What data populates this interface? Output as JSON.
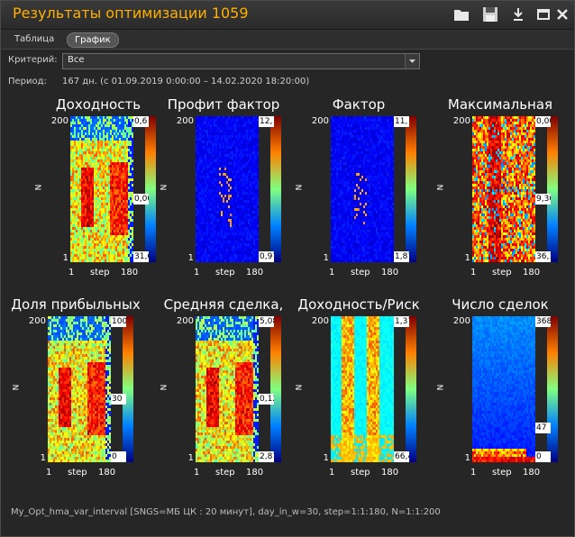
{
  "window": {
    "title": "Результаты оптимизации 1059",
    "tabs": [
      {
        "label": "Таблица",
        "active": false
      },
      {
        "label": "График",
        "active": true
      }
    ]
  },
  "criterion": {
    "label": "Критерий:",
    "value": "Все"
  },
  "period": {
    "label": "Период:",
    "value": "167 дн. (с 01.09.2019 0:00:00 – 14.02.2020 18:20:00)"
  },
  "axes": {
    "y_label": "N",
    "y_top": "200",
    "y_bottom": "1",
    "x_left": "1",
    "x_label": "step",
    "x_right": "180"
  },
  "charts": [
    {
      "title": "Доходность",
      "scheme": "jet-warm",
      "labels": [
        {
          "text": "0,6",
          "pos": "top"
        },
        {
          "text": "0,00",
          "pos": "mid"
        },
        {
          "text": "31,6",
          "pos": "bottom"
        }
      ]
    },
    {
      "title": "Профит фактор",
      "scheme": "jet-cold",
      "labels": [
        {
          "text": "12,",
          "pos": "top"
        },
        {
          "text": "0,97",
          "pos": "bottom"
        }
      ]
    },
    {
      "title": "Фактор",
      "scheme": "jet-cold",
      "labels": [
        {
          "text": "11,",
          "pos": "top"
        },
        {
          "text": "1,87",
          "pos": "bottom"
        }
      ]
    },
    {
      "title": "Максимальная",
      "scheme": "jet-hot",
      "labels": [
        {
          "text": "0,00",
          "pos": "top"
        },
        {
          "text": "9,36",
          "pos": "mid"
        },
        {
          "text": "36,1",
          "pos": "bottom"
        }
      ]
    },
    {
      "title": "Доля прибыльных",
      "scheme": "jet-warm",
      "labels": [
        {
          "text": "100",
          "pos": "top"
        },
        {
          "text": "30",
          "pos": "mid"
        },
        {
          "text": "0",
          "pos": "bottom"
        }
      ]
    },
    {
      "title": "Средняя сделка,",
      "scheme": "jet-warm",
      "labels": [
        {
          "text": "5,08",
          "pos": "top"
        },
        {
          "text": "0,12",
          "pos": "mid"
        },
        {
          "text": "2,87",
          "pos": "bottom"
        }
      ]
    },
    {
      "title": "Доходность/Риск",
      "scheme": "jet-mid",
      "labels": [
        {
          "text": "1,37",
          "pos": "top"
        },
        {
          "text": "66,4",
          "pos": "bottom"
        }
      ]
    },
    {
      "title": "Число сделок",
      "scheme": "jet-cold-count",
      "labels": [
        {
          "text": "368",
          "pos": "top"
        },
        {
          "text": "47",
          "pos": "mid2"
        },
        {
          "text": "0",
          "pos": "bottom"
        }
      ]
    }
  ],
  "footer": "My_Opt_hma_var_interval [SNGS=МБ ЦК : 20 минут], day_in_w=30, step=1:1:180, N=1:1:200",
  "colors": {
    "title": "#ffb000",
    "background": "#262626"
  }
}
